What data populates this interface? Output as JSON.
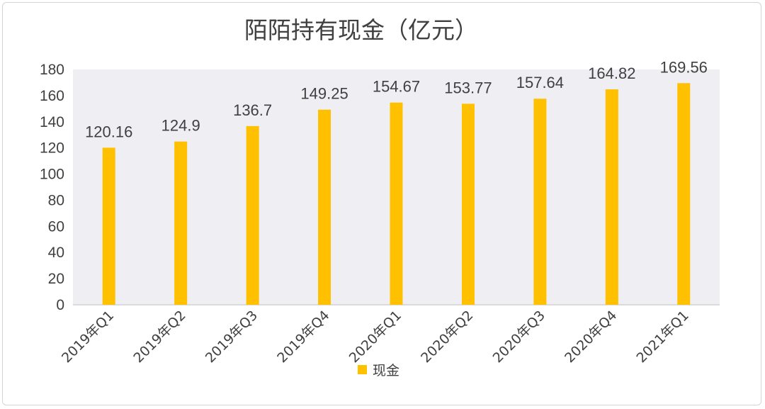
{
  "chart_data": {
    "type": "bar",
    "title": "陌陌持有现金（亿元）",
    "categories": [
      "2019年Q1",
      "2019年Q2",
      "2019年Q3",
      "2019年Q4",
      "2020年Q1",
      "2020年Q2",
      "2020年Q3",
      "2020年Q4",
      "2021年Q1"
    ],
    "series": [
      {
        "name": "现金",
        "values": [
          120.16,
          124.9,
          136.7,
          149.25,
          154.67,
          153.77,
          157.64,
          164.82,
          169.56
        ],
        "labels": [
          "120.16",
          "124.9",
          "136.7",
          "149.25",
          "154.67",
          "153.77",
          "157.64",
          "164.82",
          "169.56"
        ],
        "color": "#FFC000"
      }
    ],
    "ylim": [
      0,
      180
    ],
    "yticks": [
      0,
      20,
      40,
      60,
      80,
      100,
      120,
      140,
      160,
      180
    ],
    "xlabel": "",
    "ylabel": "",
    "plot_background": "#EFEFF3",
    "grid": false,
    "legend_position": "bottom"
  }
}
